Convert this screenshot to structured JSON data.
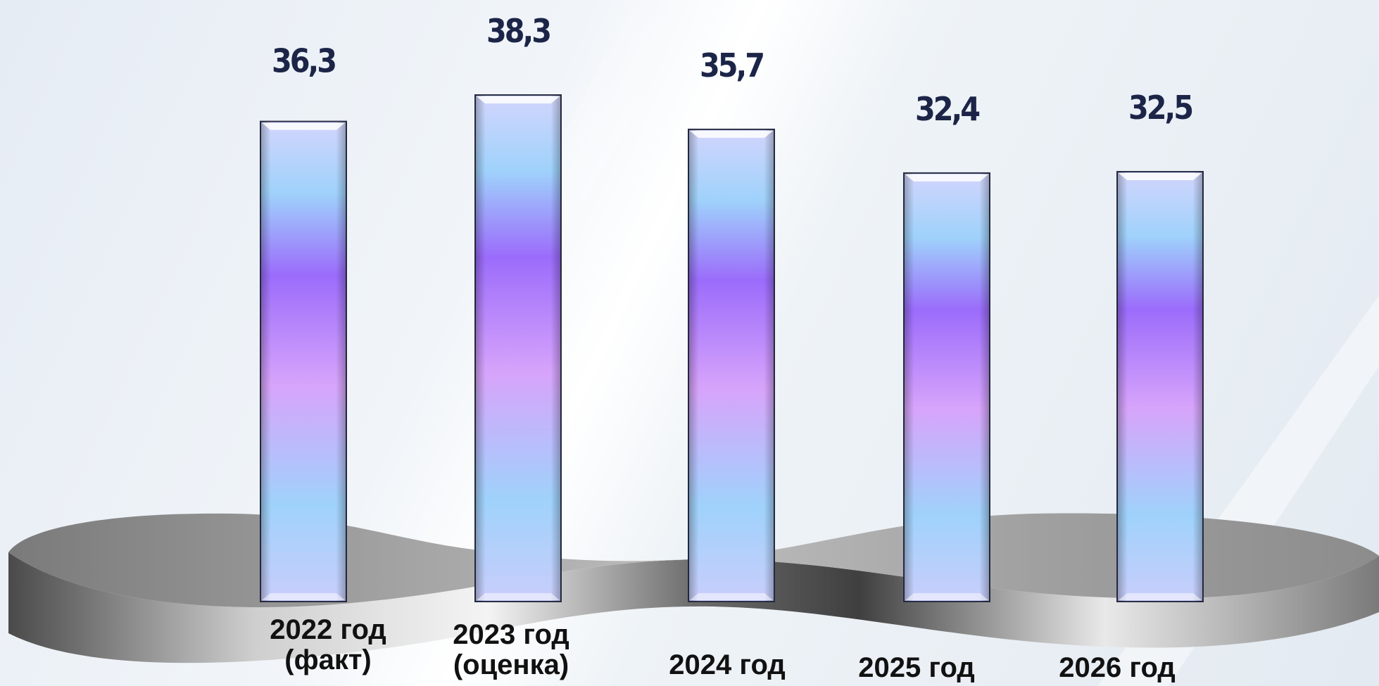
{
  "chart_data": {
    "type": "bar",
    "categories": [
      [
        "2022 год",
        "(факт)"
      ],
      [
        "2023 год",
        "(оценка)"
      ],
      [
        "2024 год"
      ],
      [
        "2025 год"
      ],
      [
        "2026 год"
      ]
    ],
    "values": [
      36.3,
      38.3,
      35.7,
      32.4,
      32.5
    ],
    "value_labels": [
      "36,3",
      "38,3",
      "35,7",
      "32,4",
      "32,5"
    ],
    "title": "",
    "xlabel": "",
    "ylabel": "",
    "ylim": [
      0,
      38.3
    ],
    "grid": false,
    "legend": "none",
    "colors": {
      "bar_top": "#c9cdfb",
      "bar_light_blue": "#9fd2fb",
      "bar_violet": "#9b6cfb",
      "bar_pink": "#d7a4fb",
      "bar_border": "#2a2f45",
      "value_text": "#1c2548",
      "category_text": "#111111",
      "platform": "#8a8a8a"
    }
  }
}
